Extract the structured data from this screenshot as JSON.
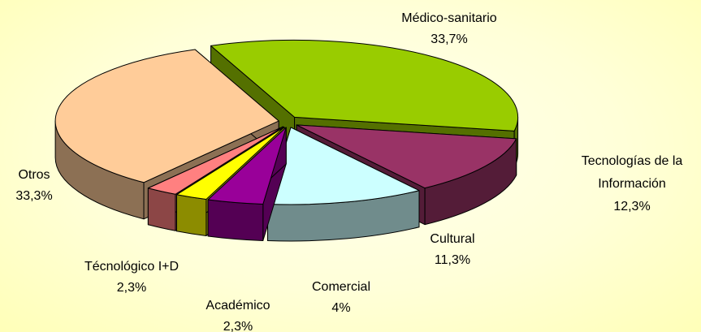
{
  "chart_data": {
    "type": "pie3d",
    "categories": [
      "Médico-sanitario",
      "Tecnologías de la Información",
      "Cultural",
      "Comercial",
      "Académico",
      "Técnológico I+D",
      "Otros"
    ],
    "values": [
      33.7,
      12.3,
      11.3,
      4,
      2.3,
      2.3,
      33.3
    ],
    "value_labels": [
      "33,7%",
      "12,3%",
      "11,3%",
      "4%",
      "2,3%",
      "2,3%",
      "33,3%"
    ],
    "colors": [
      "#99cc00",
      "#993366",
      "#ccffff",
      "#990099",
      "#ffff00",
      "#ff8080",
      "#ffcc99"
    ]
  }
}
